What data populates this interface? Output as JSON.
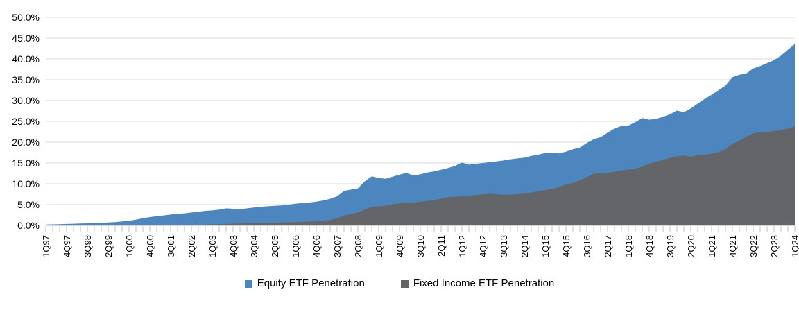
{
  "chart_data": {
    "type": "area",
    "mode": "overlay",
    "title": "",
    "xlabel": "",
    "ylabel": "",
    "ylim": [
      0,
      50
    ],
    "grid": true,
    "legend_position": "bottom",
    "y_tick_labels": [
      "50.0%",
      "45.0%",
      "40.0%",
      "35.0%",
      "30.0%",
      "25.0%",
      "20.0%",
      "15.0%",
      "10.0%",
      "5.0%",
      "0.0%"
    ],
    "x_tick_labels": [
      "1Q97",
      "4Q97",
      "3Q98",
      "2Q99",
      "1Q00",
      "4Q00",
      "3Q01",
      "2Q02",
      "1Q03",
      "4Q03",
      "3Q04",
      "2Q05",
      "1Q06",
      "4Q06",
      "3Q07",
      "2Q08",
      "1Q09",
      "4Q09",
      "3Q10",
      "2Q11",
      "1Q12",
      "4Q12",
      "3Q13",
      "2Q14",
      "1Q15",
      "4Q15",
      "3Q16",
      "2Q17",
      "1Q18",
      "4Q18",
      "3Q19",
      "2Q20",
      "1Q21",
      "4Q21",
      "3Q22",
      "2Q23",
      "1Q24"
    ],
    "x_label_every_n_points": 3,
    "series": [
      {
        "name": "Equity ETF Penetration",
        "color": "#4d86be",
        "values": [
          0.2,
          0.25,
          0.3,
          0.35,
          0.4,
          0.45,
          0.5,
          0.55,
          0.6,
          0.7,
          0.8,
          0.95,
          1.1,
          1.4,
          1.7,
          2.0,
          2.2,
          2.4,
          2.6,
          2.8,
          2.9,
          3.1,
          3.3,
          3.5,
          3.6,
          3.8,
          4.1,
          4.0,
          3.9,
          4.1,
          4.3,
          4.5,
          4.6,
          4.7,
          4.8,
          5.0,
          5.2,
          5.4,
          5.5,
          5.7,
          6.0,
          6.4,
          7.0,
          8.3,
          8.6,
          8.9,
          10.6,
          11.8,
          11.4,
          11.2,
          11.7,
          12.2,
          12.6,
          12.0,
          12.3,
          12.7,
          13.0,
          13.4,
          13.8,
          14.3,
          15.1,
          14.6,
          14.8,
          15.0,
          15.2,
          15.4,
          15.6,
          15.9,
          16.1,
          16.3,
          16.7,
          17.0,
          17.4,
          17.5,
          17.3,
          17.7,
          18.3,
          18.7,
          19.8,
          20.7,
          21.2,
          22.3,
          23.3,
          23.9,
          24.0,
          24.8,
          25.8,
          25.4,
          25.6,
          26.1,
          26.7,
          27.6,
          27.2,
          28.1,
          29.3,
          30.4,
          31.4,
          32.5,
          33.6,
          35.6,
          36.2,
          36.5,
          37.7,
          38.3,
          39.0,
          39.7,
          40.8,
          42.2,
          43.6
        ]
      },
      {
        "name": "Fixed Income ETF Penetration",
        "color": "#636569",
        "values": [
          0,
          0,
          0,
          0,
          0,
          0,
          0,
          0,
          0,
          0,
          0,
          0,
          0,
          0,
          0,
          0,
          0,
          0,
          0,
          0,
          0,
          0,
          0.1,
          0.2,
          0.25,
          0.3,
          0.35,
          0.4,
          0.45,
          0.5,
          0.55,
          0.6,
          0.6,
          0.65,
          0.7,
          0.75,
          0.8,
          0.85,
          0.9,
          1.0,
          1.1,
          1.3,
          1.7,
          2.4,
          2.7,
          3.1,
          3.8,
          4.5,
          4.6,
          4.7,
          5.1,
          5.3,
          5.4,
          5.5,
          5.7,
          5.9,
          6.1,
          6.4,
          6.8,
          6.9,
          7.0,
          7.1,
          7.3,
          7.5,
          7.6,
          7.5,
          7.4,
          7.4,
          7.5,
          7.7,
          7.9,
          8.2,
          8.5,
          8.7,
          9.2,
          9.9,
          10.2,
          10.8,
          11.6,
          12.4,
          12.5,
          12.6,
          12.9,
          13.2,
          13.4,
          13.6,
          14.1,
          14.9,
          15.3,
          15.8,
          16.2,
          16.6,
          16.8,
          16.5,
          16.9,
          17.0,
          17.2,
          17.6,
          18.3,
          19.6,
          20.3,
          21.4,
          22.1,
          22.5,
          22.4,
          22.7,
          22.9,
          23.3,
          23.8
        ]
      }
    ],
    "colors": {
      "gridline": "#d9d9d9",
      "axis_line": "#b3b3b3",
      "tick_mark": "#c0c0c0",
      "label_text": "#000000"
    }
  }
}
